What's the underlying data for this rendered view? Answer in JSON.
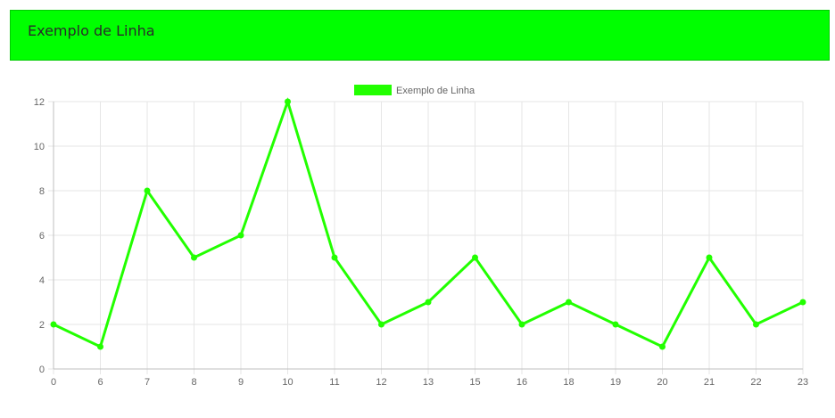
{
  "header": {
    "title": "Exemplo de Linha"
  },
  "colors": {
    "accent": "#00ff00",
    "line": "#22ff00",
    "grid": "#e6e6e6",
    "axis": "#bfbfbf",
    "tick_text": "#666666"
  },
  "chart_data": {
    "type": "line",
    "title": "",
    "xlabel": "",
    "ylabel": "",
    "categories": [
      "0",
      "6",
      "7",
      "8",
      "9",
      "10",
      "11",
      "12",
      "13",
      "15",
      "16",
      "18",
      "19",
      "20",
      "21",
      "22",
      "23"
    ],
    "series": [
      {
        "name": "Exemplo de Linha",
        "values": [
          2,
          1,
          8,
          5,
          6,
          12,
          5,
          2,
          3,
          5,
          2,
          3,
          2,
          1,
          5,
          2,
          3
        ]
      }
    ],
    "ylim": [
      0,
      12
    ],
    "yticks": [
      0,
      2,
      4,
      6,
      8,
      10,
      12
    ],
    "grid": true,
    "legend": "top-center"
  }
}
